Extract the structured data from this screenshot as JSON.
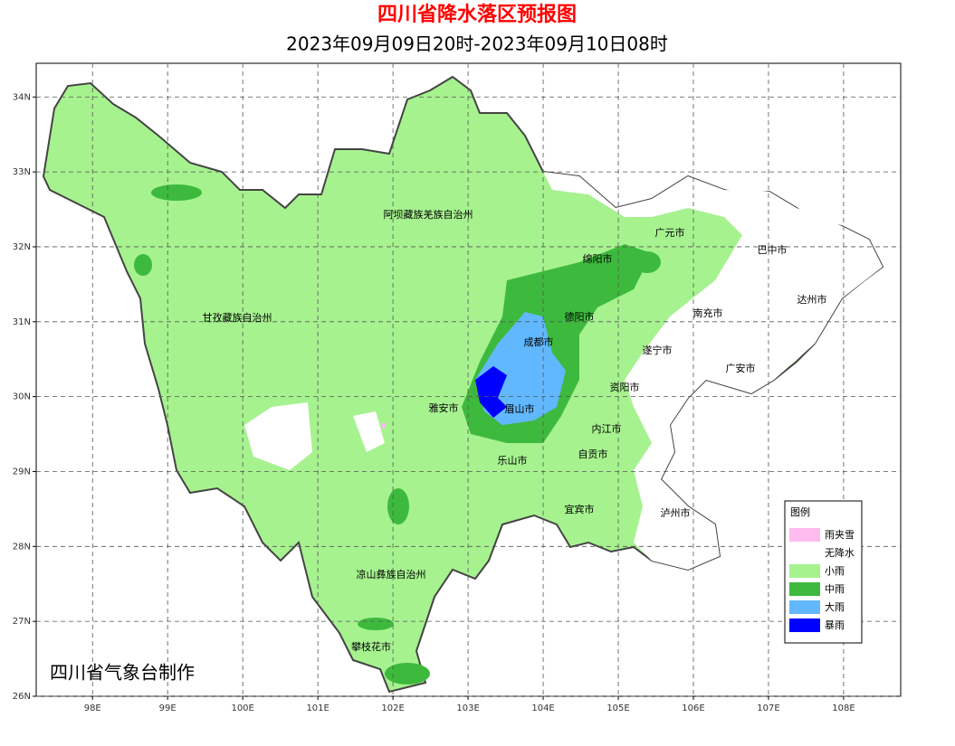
{
  "header": {
    "title": "四川省降水落区预报图",
    "subtitle": "2023年09月09日20时-2023年09月10日08时"
  },
  "map": {
    "xlim": [
      97.25,
      108.76
    ],
    "ylim": [
      26,
      34.45
    ],
    "xticks": [
      {
        "value": 98,
        "label": "98E"
      },
      {
        "value": 99,
        "label": "99E"
      },
      {
        "value": 100,
        "label": "100E"
      },
      {
        "value": 101,
        "label": "101E"
      },
      {
        "value": 102,
        "label": "102E"
      },
      {
        "value": 103,
        "label": "103E"
      },
      {
        "value": 104,
        "label": "104E"
      },
      {
        "value": 105,
        "label": "105E"
      },
      {
        "value": 106,
        "label": "106E"
      },
      {
        "value": 107,
        "label": "107E"
      },
      {
        "value": 108,
        "label": "108E"
      }
    ],
    "yticks": [
      {
        "value": 26,
        "label": "26N"
      },
      {
        "value": 27,
        "label": "27N"
      },
      {
        "value": 28,
        "label": "28N"
      },
      {
        "value": 29,
        "label": "29N"
      },
      {
        "value": 30,
        "label": "30N"
      },
      {
        "value": 31,
        "label": "31N"
      },
      {
        "value": 32,
        "label": "32N"
      },
      {
        "value": 33,
        "label": "33N"
      },
      {
        "value": 34,
        "label": "34N"
      }
    ],
    "grid": true,
    "places": [
      "阿坝藏族羌族自治州",
      "广元市",
      "巴中市",
      "绵阳市",
      "达州市",
      "甘孜藏族自治州",
      "德阳市",
      "南充市",
      "成都市",
      "遂宁市",
      "广安市",
      "资阳市",
      "雅安市",
      "眉山市",
      "内江市",
      "自贡市",
      "乐山市",
      "宜宾市",
      "泸州市",
      "凉山彝族自治州",
      "攀枝花市"
    ]
  },
  "legend": {
    "title": "图例",
    "items": [
      {
        "label": "雨夹雪",
        "color": "#ffbbee"
      },
      {
        "label": "无降水",
        "color": "#ffffff"
      },
      {
        "label": "小雨",
        "color": "#a6f28f"
      },
      {
        "label": "中雨",
        "color": "#3dba3d"
      },
      {
        "label": "大雨",
        "color": "#61b8ff"
      },
      {
        "label": "暴雨",
        "color": "#0000fe"
      }
    ]
  },
  "footer": "四川省气象台制作"
}
